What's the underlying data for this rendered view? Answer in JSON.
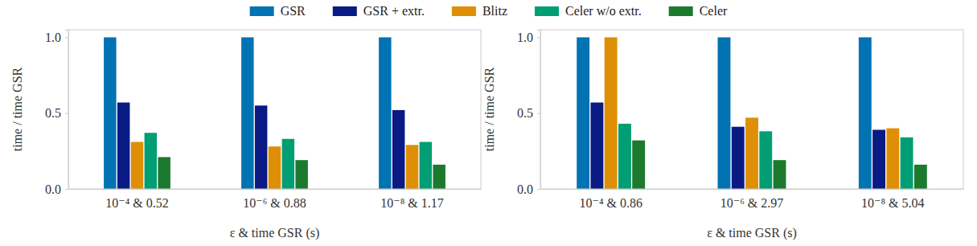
{
  "chart_data": [
    {
      "type": "bar",
      "x_label": "ε & time GSR (s)",
      "y_label": "time / time GSR",
      "categories": [
        "10⁻⁴ & 0.52",
        "10⁻⁶ & 0.88",
        "10⁻⁸ & 1.17"
      ],
      "series": [
        {
          "name": "GSR",
          "color": "#0173b2",
          "values": [
            1.0,
            1.0,
            1.0
          ]
        },
        {
          "name": "GSR + extr.",
          "color": "#0a1a84",
          "values": [
            0.57,
            0.55,
            0.52
          ]
        },
        {
          "name": "Blitz",
          "color": "#de8f05",
          "values": [
            0.31,
            0.28,
            0.29
          ]
        },
        {
          "name": "Celer w/o extr.",
          "color": "#029e73",
          "values": [
            0.37,
            0.33,
            0.31
          ]
        },
        {
          "name": "Celer",
          "color": "#1b7a2e",
          "values": [
            0.21,
            0.19,
            0.16
          ]
        }
      ],
      "ylim": [
        0,
        1.05
      ],
      "yticks": [
        {
          "value": 0,
          "label": "0.0"
        },
        {
          "value": 0.5,
          "label": "0.5"
        },
        {
          "value": 1,
          "label": "1.0"
        }
      ],
      "grid": false,
      "legend": "top"
    },
    {
      "type": "bar",
      "x_label": "ε & time GSR (s)",
      "y_label": "time / time GSR",
      "categories": [
        "10⁻⁴ & 0.86",
        "10⁻⁶ & 2.97",
        "10⁻⁸ & 5.04"
      ],
      "series": [
        {
          "color": "#0173b2",
          "values": [
            1.0,
            1.0,
            1.0
          ]
        },
        {
          "color": "#0a1a84",
          "values": [
            0.57,
            0.41,
            0.39
          ]
        },
        {
          "color": "#de8f05",
          "values": [
            1.0,
            0.47,
            0.4
          ]
        },
        {
          "color": "#029e73",
          "values": [
            0.43,
            0.38,
            0.34
          ]
        },
        {
          "color": "#1b7a2e",
          "values": [
            0.32,
            0.19,
            0.16
          ]
        }
      ],
      "ylim": [
        0,
        1.05
      ],
      "yticks": [
        {
          "value": 0,
          "label": "0.0"
        },
        {
          "value": 0.5,
          "label": "0.5"
        },
        {
          "value": 1,
          "label": "1.0"
        }
      ],
      "grid": false
    }
  ]
}
